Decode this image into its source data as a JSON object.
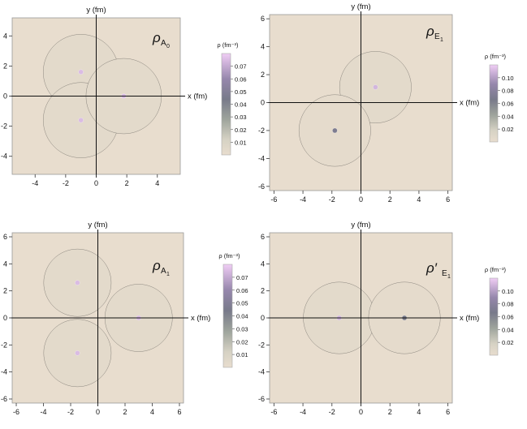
{
  "chart_data": [
    {
      "type": "heatmap",
      "subtype": "contour",
      "title": "ρ",
      "title_subscript": "A",
      "title_subsubscript": "0",
      "xlabel": "x (fm)",
      "ylabel": "y (fm)",
      "xlim": [
        -5.5,
        5.5
      ],
      "ylim": [
        -5.2,
        5.2
      ],
      "xticks": [
        -4,
        -2,
        0,
        2,
        4
      ],
      "yticks": [
        -4,
        -2,
        0,
        2,
        4
      ],
      "peaks": [
        {
          "x": -1.0,
          "y": 1.6,
          "rho": 0.075
        },
        {
          "x": -1.0,
          "y": -1.6,
          "rho": 0.075
        },
        {
          "x": 1.8,
          "y": 0.0,
          "rho": 0.075
        }
      ],
      "colorbar": {
        "label": "ρ (fm⁻³)",
        "ticks": [
          "0.07",
          "0.06",
          "0.05",
          "0.04",
          "0.03",
          "0.02",
          "0.01"
        ],
        "max": 0.08
      }
    },
    {
      "type": "heatmap",
      "subtype": "contour",
      "title": "ρ",
      "title_subscript": "E",
      "title_subsubscript": "1",
      "xlabel": "x (fm)",
      "ylabel": "y (fm)",
      "xlim": [
        -6.3,
        6.3
      ],
      "ylim": [
        -6.3,
        6.3
      ],
      "xticks": [
        -6,
        -4,
        -2,
        0,
        2,
        4,
        6
      ],
      "yticks": [
        -6,
        -4,
        -2,
        0,
        2,
        4,
        6
      ],
      "peaks": [
        {
          "x": 1.0,
          "y": 1.1,
          "rho": 0.11
        },
        {
          "x": -1.8,
          "y": -2.0,
          "rho": 0.07
        }
      ],
      "colorbar": {
        "label": "ρ (fm⁻³)",
        "ticks": [
          "0.10",
          "0.08",
          "0.06",
          "0.04",
          "0.02"
        ],
        "max": 0.12
      }
    },
    {
      "type": "heatmap",
      "subtype": "contour",
      "title": "ρ",
      "title_subscript": "A",
      "title_subsubscript": "1",
      "xlabel": "x (fm)",
      "ylabel": "y (fm)",
      "xlim": [
        -6.3,
        6.3
      ],
      "ylim": [
        -6.3,
        6.3
      ],
      "xticks": [
        -6,
        -4,
        -2,
        0,
        2,
        4,
        6
      ],
      "yticks": [
        -6,
        -4,
        -2,
        0,
        2,
        4,
        6
      ],
      "peaks": [
        {
          "x": -1.5,
          "y": 2.6,
          "rho": 0.075
        },
        {
          "x": -1.5,
          "y": -2.6,
          "rho": 0.075
        },
        {
          "x": 3.0,
          "y": 0.0,
          "rho": 0.075
        }
      ],
      "colorbar": {
        "label": "ρ (fm⁻³)",
        "ticks": [
          "0.07",
          "0.06",
          "0.05",
          "0.04",
          "0.03",
          "0.02",
          "0.01"
        ],
        "max": 0.08
      }
    },
    {
      "type": "heatmap",
      "subtype": "contour",
      "title": "ρ′",
      "title_subscript": "E",
      "title_subsubscript": "1",
      "xlabel": "x (fm)",
      "ylabel": "y (fm)",
      "xlim": [
        -6.3,
        6.3
      ],
      "ylim": [
        -6.3,
        6.3
      ],
      "xticks": [
        -6,
        -4,
        -2,
        0,
        2,
        4,
        6
      ],
      "yticks": [
        -6,
        -4,
        -2,
        0,
        2,
        4,
        6
      ],
      "peaks": [
        {
          "x": -1.5,
          "y": 0.0,
          "rho": 0.11
        },
        {
          "x": 3.0,
          "y": 0.0,
          "rho": 0.065
        }
      ],
      "colorbar": {
        "label": "ρ (fm⁻³)",
        "ticks": [
          "0.10",
          "0.08",
          "0.06",
          "0.04",
          "0.02"
        ],
        "max": 0.12
      }
    }
  ]
}
